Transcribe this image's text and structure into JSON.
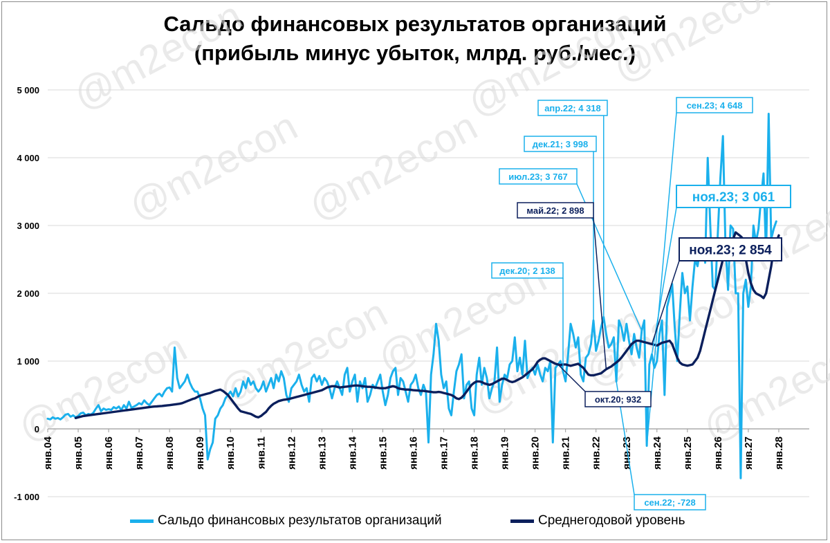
{
  "chart_data": {
    "type": "line",
    "title": "Сальдо финансовых результатов организаций",
    "subtitle": "(прибыль минус убыток, млрд. руб./мес.)",
    "watermark": "@m2econ",
    "xlabel": "",
    "ylabel": "",
    "y_range": [
      -1000,
      5000
    ],
    "y_ticks": [
      -1000,
      0,
      1000,
      2000,
      3000,
      4000,
      5000
    ],
    "y_tick_labels": [
      "-1 000",
      "0",
      "1 000",
      "2 000",
      "3 000",
      "4 000",
      "5 000"
    ],
    "x_range": [
      "2004-01",
      "2028-12"
    ],
    "x_tick_labels": [
      "янв.04",
      "янв.05",
      "янв.06",
      "янв.07",
      "янв.08",
      "янв.09",
      "янв.10",
      "янв.11",
      "янв.12",
      "янв.13",
      "янв.14",
      "янв.15",
      "янв.16",
      "янв.17",
      "янв.18",
      "янв.19",
      "янв.20",
      "янв.21",
      "янв.22",
      "янв.23",
      "янв.24",
      "янв.25",
      "янв.26",
      "янв.27",
      "янв.28"
    ],
    "grid": "horizontal",
    "legend_position": "bottom",
    "series": [
      {
        "name": "Сальдо финансовых результатов организаций",
        "color": "#1ab0ec",
        "start": "2004-01",
        "values": [
          150,
          140,
          170,
          150,
          160,
          140,
          170,
          210,
          220,
          180,
          200,
          170,
          190,
          230,
          240,
          200,
          220,
          210,
          240,
          300,
          350,
          260,
          300,
          280,
          290,
          280,
          320,
          300,
          330,
          280,
          350,
          300,
          400,
          310,
          330,
          350,
          380,
          360,
          420,
          380,
          350,
          400,
          450,
          500,
          520,
          480,
          550,
          600,
          610,
          550,
          1200,
          750,
          600,
          650,
          700,
          800,
          680,
          600,
          550,
          550,
          450,
          300,
          200,
          -450,
          -300,
          -200,
          150,
          200,
          300,
          350,
          450,
          500,
          550,
          480,
          600,
          480,
          550,
          700,
          600,
          750,
          650,
          700,
          600,
          550,
          600,
          700,
          550,
          650,
          750,
          600,
          800,
          700,
          850,
          750,
          500,
          400,
          600,
          650,
          700,
          800,
          650,
          550,
          600,
          400,
          750,
          800,
          700,
          780,
          650,
          750,
          700,
          600,
          450,
          600,
          700,
          600,
          500,
          800,
          900,
          550,
          700,
          800,
          400,
          700,
          600,
          750,
          400,
          500,
          650,
          600,
          700,
          800,
          550,
          350,
          500,
          750,
          850,
          900,
          500,
          750,
          700,
          550,
          400,
          650,
          700,
          800,
          600,
          500,
          650,
          550,
          -200,
          800,
          1100,
          1550,
          1300,
          800,
          600,
          700,
          300,
          200,
          550,
          850,
          950,
          1100,
          450,
          650,
          700,
          300,
          200,
          800,
          1050,
          650,
          900,
          750,
          450,
          600,
          700,
          1200,
          400,
          650,
          800,
          750,
          950,
          1000,
          1350,
          850,
          1050,
          800,
          1300,
          750,
          850,
          900,
          800,
          950,
          800,
          700,
          900,
          850,
          1000,
          -200,
          900,
          950,
          1000,
          850,
          700,
          1100,
          1550,
          1400,
          1200,
          1350,
          800,
          700,
          1050,
          1100,
          1250,
          1600,
          1150,
          1300,
          1500,
          1650,
          1400,
          1200,
          1250,
          1350,
          700,
          1600,
          1500,
          1300,
          1550,
          1300,
          1100,
          1400,
          1200,
          1050,
          1450,
          1600,
          -250,
          950,
          1100,
          900,
          1000,
          1400,
          1600,
          500,
          1800,
          1950,
          2138,
          1500,
          1000,
          1700,
          2300,
          2000,
          2100,
          1600,
          2100,
          2500,
          2400,
          2650,
          2800,
          2450,
          3998,
          3000,
          2100,
          2050,
          2900,
          3700,
          4318,
          2700,
          2050,
          3000,
          2950,
          2000,
          2000,
          -728,
          2000,
          2200,
          1800,
          2100,
          3000,
          2750,
          2950,
          3400,
          3767,
          2550,
          4648,
          2800,
          2950,
          3061
        ]
      },
      {
        "name": "Среднегодовой уровень",
        "color": "#0b1f5c",
        "start": "2004-12",
        "values": [
          160,
          170,
          180,
          190,
          195,
          200,
          205,
          210,
          215,
          220,
          225,
          230,
          235,
          240,
          245,
          250,
          255,
          260,
          265,
          270,
          275,
          280,
          285,
          290,
          295,
          300,
          305,
          310,
          315,
          320,
          325,
          330,
          332,
          335,
          338,
          342,
          346,
          350,
          355,
          360,
          365,
          370,
          380,
          395,
          410,
          425,
          440,
          450,
          470,
          490,
          500,
          510,
          520,
          530,
          545,
          560,
          570,
          580,
          560,
          530,
          500,
          450,
          400,
          350,
          300,
          260,
          250,
          240,
          230,
          220,
          200,
          180,
          170,
          190,
          220,
          250,
          300,
          340,
          370,
          390,
          410,
          420,
          430,
          435,
          440,
          450,
          460,
          470,
          480,
          490,
          500,
          510,
          520,
          530,
          540,
          550,
          560,
          570,
          590,
          610,
          620,
          630,
          630,
          620,
          610,
          615,
          620,
          625,
          630,
          635,
          640,
          640,
          635,
          630,
          625,
          620,
          620,
          615,
          610,
          605,
          600,
          600,
          600,
          610,
          620,
          630,
          620,
          600,
          590,
          585,
          580,
          580,
          575,
          570,
          568,
          565,
          560,
          560,
          555,
          550,
          545,
          540,
          540,
          545,
          540,
          530,
          520,
          510,
          500,
          480,
          450,
          440,
          460,
          500,
          550,
          600,
          650,
          680,
          700,
          700,
          690,
          670,
          660,
          650,
          660,
          680,
          700,
          720,
          740,
          740,
          720,
          700,
          690,
          700,
          720,
          740,
          760,
          790,
          820,
          850,
          880,
          930,
          990,
          1020,
          1040,
          1040,
          1020,
          1000,
          980,
          960,
          950,
          940,
          950,
          950,
          940,
          930,
          940,
          950,
          960,
          930,
          900,
          850,
          800,
          790,
          790,
          800,
          810,
          820,
          850,
          880,
          900,
          920,
          950,
          980,
          1010,
          1050,
          1100,
          1150,
          1200,
          1250,
          1280,
          1300,
          1300,
          1290,
          1280,
          1270,
          1260,
          1250,
          1240,
          1230,
          1250,
          1270,
          1280,
          1290,
          1300,
          1250,
          1150,
          1050,
          980,
          950,
          940,
          932,
          940,
          950,
          1000,
          1050,
          1150,
          1300,
          1450,
          1600,
          1750,
          1900,
          2050,
          2200,
          2350,
          2500,
          2600,
          2640,
          2680,
          2800,
          2898,
          2870,
          2840,
          2800,
          2500,
          2300,
          2150,
          2050,
          2000,
          1980,
          1960,
          1930,
          2000,
          2200,
          2400,
          2650,
          2750,
          2854
        ]
      }
    ],
    "annotations": [
      {
        "text": "апр.22; 4 318",
        "series": 0
      },
      {
        "text": "дек.21; 3 998",
        "series": 0
      },
      {
        "text": "июл.23; 3 767",
        "series": 0
      },
      {
        "text": "сен.23; 4 648",
        "series": 0
      },
      {
        "text": "дек.20; 2 138",
        "series": 0
      },
      {
        "text": "сен.22; -728",
        "series": 0
      },
      {
        "text": "ноя.23; 3 061",
        "series": 0,
        "large": true
      },
      {
        "text": "май.22; 2 898",
        "series": 1
      },
      {
        "text": "окт.20; 932",
        "series": 1
      },
      {
        "text": "ноя.23; 2 854",
        "series": 1,
        "large": true
      }
    ]
  }
}
